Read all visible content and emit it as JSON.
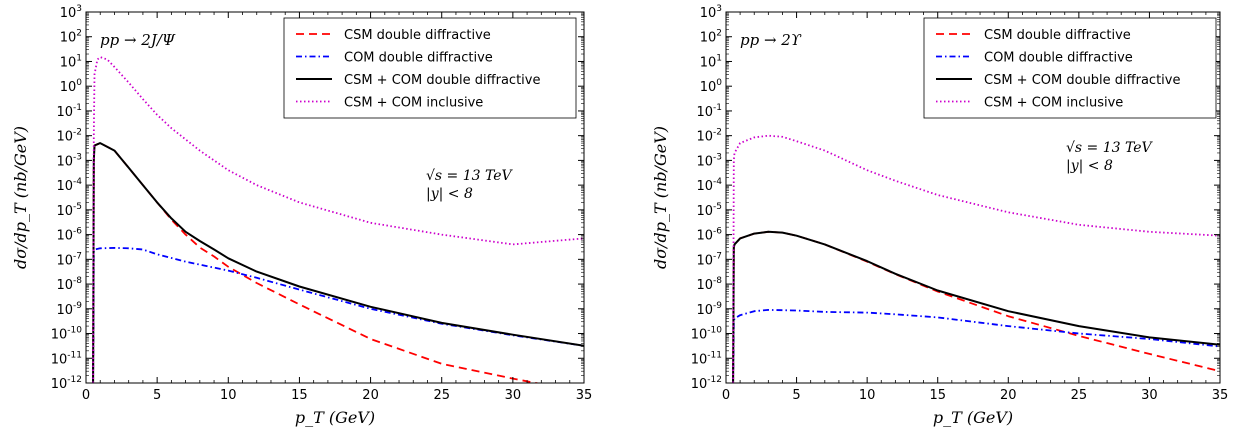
{
  "chart_data": [
    {
      "type": "line",
      "process_label": "pp → 2J/Ψ",
      "energy_label": "√s = 13 TeV",
      "rapidity_label": "|y| < 8",
      "xlabel": "p_T (GeV)",
      "ylabel": "dσ/dp_T  (nb/GeV)",
      "xlim": [
        0,
        35
      ],
      "ylim_exponent": [
        -12,
        3
      ],
      "yscale": "log",
      "xticks": [
        0,
        5,
        10,
        15,
        20,
        25,
        30,
        35
      ],
      "legend_position": "top-right",
      "series": [
        {
          "name": "CSM double diffractive",
          "color": "#ff0000",
          "style": "dashed",
          "x": [
            0.5,
            0.55,
            0.6,
            1.0,
            2.0,
            3.0,
            4.0,
            5.0,
            6.0,
            7.0,
            8.0,
            9.0,
            10.0,
            12.0,
            15.0,
            20.0,
            25.0,
            30.0,
            32.5
          ],
          "y": [
            1e-12,
            0.001,
            0.004,
            0.005,
            0.0025,
            0.0005,
            0.0001,
            2e-05,
            4e-06,
            1e-06,
            3e-07,
            1.3e-07,
            5e-08,
            1.1e-08,
            1.5e-09,
            6e-11,
            6e-12,
            1.5e-12,
            8e-13
          ]
        },
        {
          "name": "COM double diffractive",
          "color": "#0000ff",
          "style": "dashdot",
          "x": [
            0.5,
            0.55,
            0.6,
            1.0,
            2.0,
            3.0,
            4.0,
            5.0,
            7.0,
            10.0,
            12.0,
            15.0,
            20.0,
            25.0,
            30.0,
            35.0
          ],
          "y": [
            1e-12,
            2e-07,
            2.5e-07,
            2.8e-07,
            2.9e-07,
            2.8e-07,
            2.5e-07,
            1.6e-07,
            8e-08,
            3.5e-08,
            1.8e-08,
            6e-09,
            1e-09,
            2.5e-10,
            8.5e-11,
            3.2e-11
          ]
        },
        {
          "name": "CSM + COM double diffractive",
          "color": "#000000",
          "style": "solid",
          "x": [
            0.5,
            0.55,
            0.6,
            1.0,
            2.0,
            3.0,
            4.0,
            5.0,
            6.0,
            7.0,
            8.0,
            9.0,
            10.0,
            12.0,
            15.0,
            20.0,
            25.0,
            30.0,
            35.0
          ],
          "y": [
            1e-12,
            0.001,
            0.004,
            0.005,
            0.0025,
            0.0005,
            0.0001,
            2e-05,
            4.5e-06,
            1.3e-06,
            5.5e-07,
            2.5e-07,
            1.1e-07,
            3.2e-08,
            8e-09,
            1.2e-09,
            2.7e-10,
            9e-11,
            3.2e-11
          ]
        },
        {
          "name": "CSM + COM inclusive",
          "color": "#cc00cc",
          "style": "dotted",
          "x": [
            0.5,
            0.55,
            0.6,
            0.8,
            1.0,
            1.5,
            2.0,
            3.0,
            4.0,
            5.0,
            6.0,
            8.0,
            10.0,
            12.0,
            15.0,
            20.0,
            25.0,
            30.0,
            35.0
          ],
          "y": [
            1e-12,
            0.01,
            3,
            12,
            15,
            12,
            6,
            1.4,
            0.3,
            0.07,
            0.02,
            0.0025,
            0.0004,
            0.0001,
            2e-05,
            3e-06,
            1e-06,
            4e-07,
            7e-07
          ]
        }
      ]
    },
    {
      "type": "line",
      "process_label": "pp → 2ϒ",
      "energy_label": "√s = 13 TeV",
      "rapidity_label": "|y| < 8",
      "xlabel": "p_T (GeV)",
      "ylabel": "dσ/dp_T  (nb/GeV)",
      "xlim": [
        0,
        35
      ],
      "ylim_exponent": [
        -12,
        3
      ],
      "yscale": "log",
      "xticks": [
        0,
        5,
        10,
        15,
        20,
        25,
        30,
        35
      ],
      "legend_position": "top-right",
      "series": [
        {
          "name": "CSM double diffractive",
          "color": "#ff0000",
          "style": "dashed",
          "x": [
            0.5,
            0.55,
            0.6,
            1.0,
            2.0,
            3.0,
            4.0,
            5.0,
            7.0,
            10.0,
            12.0,
            15.0,
            20.0,
            25.0,
            30.0,
            35.0
          ],
          "y": [
            1e-12,
            3e-07,
            4e-07,
            7e-07,
            1.1e-06,
            1.3e-06,
            1.2e-06,
            9e-07,
            4e-07,
            8e-08,
            2.5e-08,
            5e-09,
            5e-10,
            8e-11,
            1.5e-11,
            3e-12
          ]
        },
        {
          "name": "COM double diffractive",
          "color": "#0000ff",
          "style": "dashdot",
          "x": [
            0.5,
            0.55,
            0.6,
            1.0,
            2.0,
            3.0,
            4.0,
            5.0,
            7.0,
            10.0,
            12.0,
            15.0,
            20.0,
            25.0,
            30.0,
            35.0
          ],
          "y": [
            1e-12,
            3e-10,
            4e-10,
            5.5e-10,
            8e-10,
            9e-10,
            8.8e-10,
            8.5e-10,
            7.5e-10,
            7e-10,
            6e-10,
            4.5e-10,
            2e-10,
            1e-10,
            6e-11,
            3e-11
          ]
        },
        {
          "name": "CSM + COM double diffractive",
          "color": "#000000",
          "style": "solid",
          "x": [
            0.5,
            0.55,
            0.6,
            1.0,
            2.0,
            3.0,
            4.0,
            5.0,
            7.0,
            10.0,
            12.0,
            15.0,
            20.0,
            25.0,
            30.0,
            35.0
          ],
          "y": [
            1e-12,
            3e-07,
            4e-07,
            7e-07,
            1.1e-06,
            1.3e-06,
            1.2e-06,
            9e-07,
            4e-07,
            8.5e-08,
            2.6e-08,
            5.5e-09,
            8e-10,
            2e-10,
            7e-11,
            3.5e-11
          ]
        },
        {
          "name": "CSM + COM inclusive",
          "color": "#cc00cc",
          "style": "dotted",
          "x": [
            0.5,
            0.55,
            0.6,
            1.0,
            2.0,
            3.0,
            4.0,
            5.0,
            7.0,
            10.0,
            12.0,
            15.0,
            20.0,
            25.0,
            30.0,
            35.0
          ],
          "y": [
            1e-12,
            0.001,
            0.002,
            0.005,
            0.0085,
            0.01,
            0.009,
            0.006,
            0.0025,
            0.0004,
            0.00015,
            4e-05,
            8e-06,
            2.5e-06,
            1.3e-06,
            9e-07
          ]
        }
      ]
    }
  ]
}
